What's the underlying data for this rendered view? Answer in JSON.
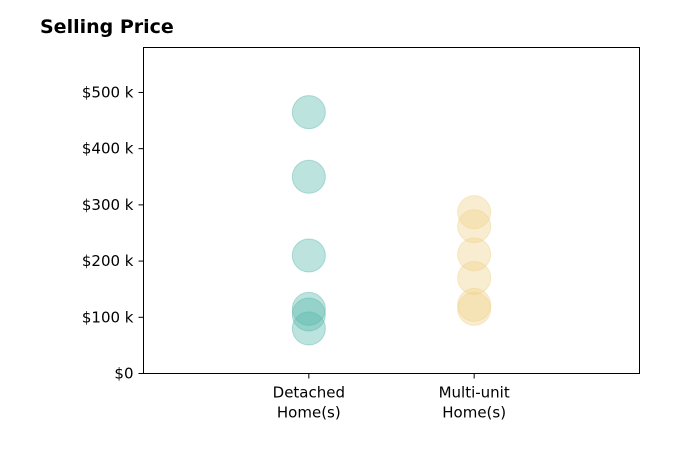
{
  "chart_data": {
    "type": "scatter",
    "title": "Selling Price",
    "categories": [
      "Detached\nHome(s)",
      "Multi-unit\nHome(s)"
    ],
    "y_ticks": [
      {
        "value": 0,
        "label": "$0"
      },
      {
        "value": 100000,
        "label": "$100 k"
      },
      {
        "value": 200000,
        "label": "$200 k"
      },
      {
        "value": 300000,
        "label": "$300 k"
      },
      {
        "value": 400000,
        "label": "$400 k"
      },
      {
        "value": 500000,
        "label": "$500 k"
      }
    ],
    "ylim": [
      0,
      580000
    ],
    "xlim": [
      -1,
      2
    ],
    "grid": false,
    "series": [
      {
        "category_index": 0,
        "color": "#5ab8ad",
        "values": [
          465000,
          350000,
          210000,
          115000,
          105000,
          80000
        ]
      },
      {
        "category_index": 1,
        "color": "#f0d28c",
        "values": [
          287000,
          262000,
          212000,
          170000,
          122000,
          115000
        ]
      }
    ]
  }
}
